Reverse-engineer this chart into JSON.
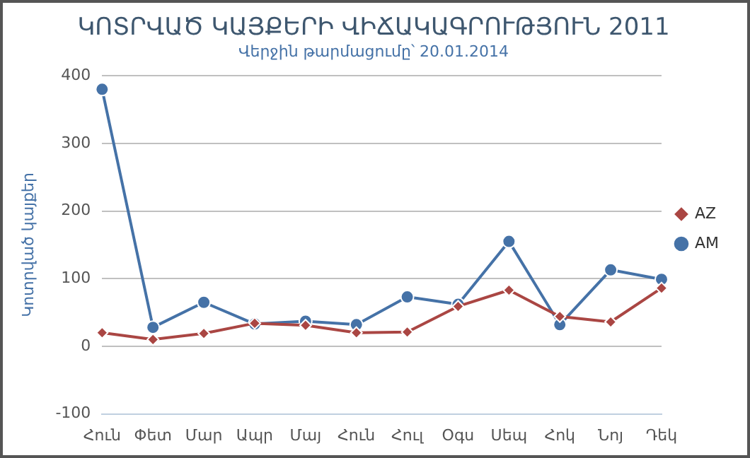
{
  "chart_data": {
    "type": "line",
    "title": "ԿՈՏՐՎԱԾ ԿԱՅՔԵՐԻ ՎԻՃԱԿԱԳՐՈՒԹՅՈՒՆ 2011",
    "subtitle": "Վերջին թարմացումը՝ 20.01.2014",
    "ylabel": "Կոտրված կայքեր",
    "categories": [
      "Հուն",
      "Փետ",
      "Մար",
      "Ապր",
      "Մայ",
      "Հուն",
      "Հուլ",
      "Օգս",
      "Սեպ",
      "Հոկ",
      "Նոյ",
      "Դեկ"
    ],
    "series": [
      {
        "name": "AM",
        "color": "#4572a7",
        "marker": "circle",
        "values": [
          380,
          28,
          65,
          33,
          37,
          32,
          73,
          62,
          155,
          32,
          113,
          99
        ]
      },
      {
        "name": "AZ",
        "color": "#aa4643",
        "marker": "diamond",
        "values": [
          20,
          10,
          19,
          34,
          31,
          20,
          21,
          59,
          83,
          44,
          36,
          86
        ]
      }
    ],
    "ylim": [
      -100,
      400
    ],
    "yticks": [
      -100,
      0,
      100,
      200,
      300,
      400
    ],
    "grid": "y",
    "legend": "right",
    "line_style": "solid"
  }
}
